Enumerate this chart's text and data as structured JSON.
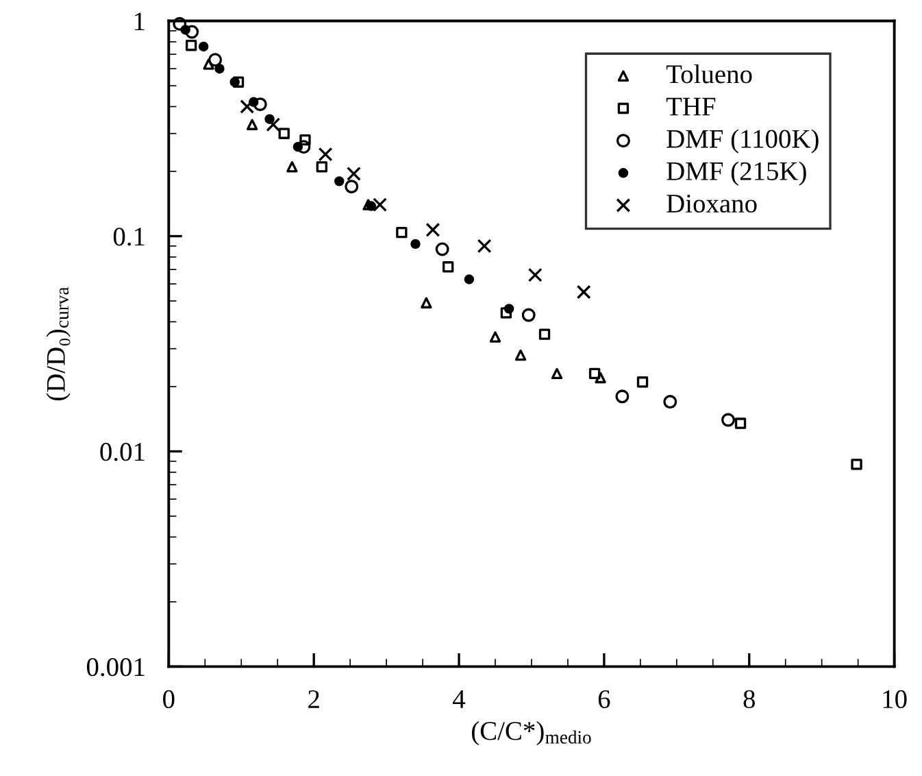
{
  "chart_data": {
    "type": "scatter",
    "xlabel": "(C/C*)$_{medio}$",
    "ylabel": "(D/D₀)$_{curva}$",
    "xlim": [
      0,
      10
    ],
    "xticks": [
      0,
      2,
      4,
      6,
      8,
      10
    ],
    "ylim": [
      0.001,
      1
    ],
    "yticks": [
      0.001,
      0.01,
      0.1,
      1
    ],
    "log": "y",
    "grid": false,
    "legend": "top right",
    "series": [
      {
        "name": "Tolueno",
        "color": "#000000",
        "marker": "triangle",
        "x": [
          0.55,
          1.15,
          1.7,
          2.75,
          3.55,
          4.5,
          4.85,
          5.35,
          5.95
        ],
        "values": [
          0.63,
          0.33,
          0.21,
          0.14,
          0.049,
          0.034,
          0.028,
          0.023,
          0.022
        ]
      },
      {
        "name": "THF",
        "color": "#000000",
        "marker": "square",
        "x": [
          0.31,
          0.96,
          1.59,
          1.88,
          2.11,
          3.21,
          3.85,
          4.65,
          5.18,
          5.87,
          6.53,
          7.88,
          9.48
        ],
        "values": [
          0.77,
          0.52,
          0.3,
          0.28,
          0.21,
          0.104,
          0.072,
          0.044,
          0.035,
          0.023,
          0.021,
          0.0135,
          0.0087
        ]
      },
      {
        "name": "DMF (1100K)",
        "color": "#000000",
        "marker": "circle",
        "x": [
          0.15,
          0.32,
          0.64,
          1.26,
          1.86,
          2.52,
          3.77,
          4.96,
          6.25,
          6.91,
          7.71
        ],
        "values": [
          0.97,
          0.89,
          0.66,
          0.41,
          0.26,
          0.17,
          0.087,
          0.043,
          0.018,
          0.017,
          0.014
        ]
      },
      {
        "name": "DMF (215K)",
        "color": "#000000",
        "marker": "circle",
        "x": [
          0.23,
          0.48,
          0.7,
          0.91,
          1.17,
          1.39,
          1.78,
          2.35,
          2.79,
          3.4,
          4.14,
          4.69
        ],
        "values": [
          0.91,
          0.76,
          0.6,
          0.52,
          0.42,
          0.35,
          0.26,
          0.18,
          0.138,
          0.092,
          0.063,
          0.046
        ]
      },
      {
        "name": "Dioxano",
        "color": "#000000",
        "marker": "cross",
        "x": [
          1.08,
          1.44,
          2.16,
          2.55,
          2.91,
          3.64,
          4.35,
          5.05,
          5.72
        ],
        "values": [
          0.4,
          0.33,
          0.24,
          0.195,
          0.14,
          0.107,
          0.09,
          0.066,
          0.055
        ]
      }
    ]
  }
}
